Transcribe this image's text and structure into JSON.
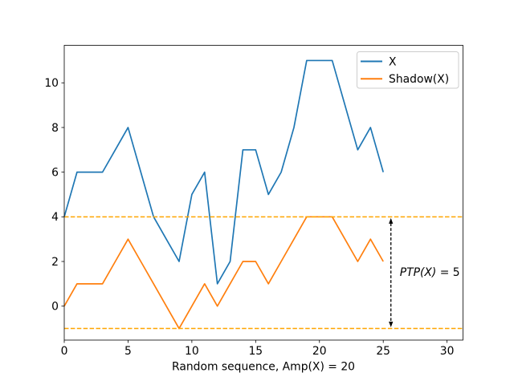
{
  "figure": {
    "background": "#ffffff"
  },
  "chart_data": {
    "type": "line",
    "title": "",
    "xlabel": "Random sequence, Amp(X) = 20",
    "ylabel": "",
    "grid": false,
    "x": [
      0,
      1,
      2,
      3,
      4,
      5,
      6,
      7,
      8,
      9,
      10,
      11,
      12,
      13,
      14,
      15,
      16,
      17,
      18,
      19,
      20,
      21,
      22,
      23,
      24,
      25
    ],
    "series": [
      {
        "name": "X",
        "color": "#1f77b4",
        "values": [
          4,
          6,
          6,
          6,
          7,
          8,
          6,
          4,
          3,
          2,
          5,
          6,
          1,
          2,
          7,
          7,
          5,
          6,
          8,
          11,
          11,
          11,
          9,
          7,
          8,
          6
        ]
      },
      {
        "name": "Shadow(X)",
        "color": "#ff7f0e",
        "values": [
          0,
          1,
          1,
          1,
          2,
          3,
          2,
          1,
          0,
          -1,
          0,
          1,
          0,
          1,
          2,
          2,
          1,
          2,
          3,
          4,
          4,
          4,
          3,
          2,
          3,
          2
        ]
      }
    ],
    "xlim": [
      0,
      31.25
    ],
    "ylim": [
      -1.52,
      11.68
    ],
    "xticks": [
      0,
      5,
      10,
      15,
      20,
      25,
      30
    ],
    "yticks": [
      0,
      2,
      4,
      6,
      8,
      10
    ],
    "legend": {
      "location": "upper-right",
      "entries": [
        "X",
        "Shadow(X)"
      ]
    },
    "shadow_bounds": {
      "values": [
        4,
        -1
      ],
      "color": "#ffa500",
      "linestyle": "dashed"
    },
    "annotation": {
      "label": "PTP(X) = 5",
      "label_italic": "PTP(X)",
      "label_rest": " = 5",
      "arrow_x": 25.6,
      "arrow_y_top": 4,
      "arrow_y_bottom": -1,
      "arrow_color": "#000000"
    }
  }
}
